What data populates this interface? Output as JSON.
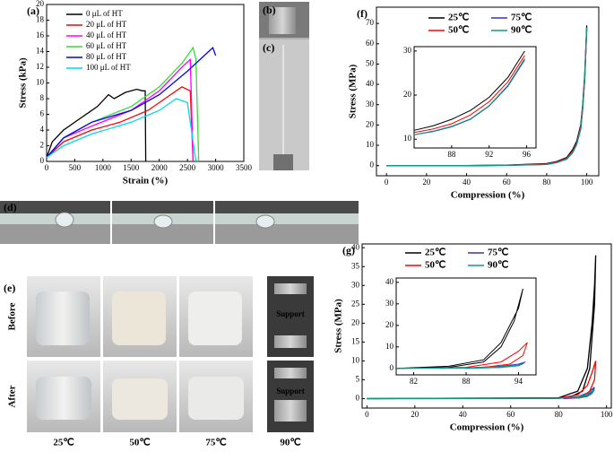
{
  "chart_data": [
    {
      "type": "line",
      "label": "(a)",
      "xlabel": "Strain (%)",
      "ylabel": "Stress (kPa)",
      "xlim": [
        0,
        3500
      ],
      "ylim": [
        0,
        20
      ],
      "xticks": [
        0,
        500,
        1000,
        1500,
        2000,
        2500,
        3000,
        3500
      ],
      "yticks": [
        0,
        2,
        4,
        6,
        8,
        10,
        12,
        14,
        16,
        18,
        20
      ],
      "series": [
        {
          "name": "0 μL of HT",
          "color": "#000000",
          "x": [
            0,
            100,
            300,
            600,
            900,
            1100,
            1200,
            1400,
            1600,
            1700,
            1750,
            1760
          ],
          "values": [
            0.5,
            2.5,
            4,
            5.5,
            7,
            8.5,
            8,
            8.8,
            9.2,
            9,
            9,
            0
          ]
        },
        {
          "name": "20 μL of HT",
          "color": "#ff0000",
          "x": [
            0,
            300,
            800,
            1300,
            1800,
            2200,
            2400,
            2550,
            2600
          ],
          "values": [
            0.5,
            2.5,
            4,
            5,
            6.5,
            8.5,
            9.5,
            9,
            0
          ]
        },
        {
          "name": "40 μL of HT",
          "color": "#ff00ff",
          "x": [
            0,
            300,
            800,
            1500,
            2000,
            2400,
            2550,
            2600
          ],
          "values": [
            0.5,
            3,
            4.5,
            6.5,
            9,
            12,
            13,
            0
          ]
        },
        {
          "name": "60 μL of HT",
          "color": "#33dd33",
          "x": [
            0,
            300,
            800,
            1500,
            2000,
            2400,
            2600,
            2650,
            2700
          ],
          "values": [
            0.5,
            3,
            5,
            7,
            9.5,
            12.5,
            14.5,
            13,
            0
          ]
        },
        {
          "name": "80 μL of HT",
          "color": "#0000ff",
          "x": [
            0,
            300,
            800,
            1500,
            2000,
            2500,
            2800,
            2950,
            3000
          ],
          "values": [
            0.5,
            3,
            5,
            6.5,
            8.5,
            11.5,
            13.5,
            14.5,
            13.5
          ]
        },
        {
          "name": "100 μL of HT",
          "color": "#00d8e8",
          "x": [
            0,
            300,
            800,
            1500,
            2000,
            2300,
            2500,
            2650
          ],
          "values": [
            0.5,
            2,
            3.5,
            5,
            6.5,
            8,
            7.5,
            0
          ]
        }
      ]
    },
    {
      "type": "line",
      "label": "(f)",
      "xlabel": "Compression (%)",
      "ylabel": "Stress (MPa)",
      "xlim": [
        -5,
        106
      ],
      "ylim": [
        -5,
        78
      ],
      "xticks": [
        0,
        20,
        40,
        60,
        80,
        100
      ],
      "yticks": [
        0,
        10,
        20,
        30,
        40,
        50,
        60,
        70
      ],
      "series": [
        {
          "name": "25℃",
          "color": "#000000",
          "x": [
            0,
            40,
            60,
            80,
            85,
            90,
            93,
            95,
            97,
            98,
            99,
            100
          ],
          "values": [
            0,
            0,
            0.2,
            1,
            2,
            4,
            8,
            12,
            20,
            30,
            45,
            69
          ]
        },
        {
          "name": "75℃",
          "color": "#3333cc",
          "x": [
            0,
            40,
            60,
            80,
            85,
            90,
            93,
            95,
            97,
            98,
            99,
            100
          ],
          "values": [
            0,
            0,
            0.1,
            0.6,
            1.5,
            3.2,
            6.5,
            10.5,
            18,
            28,
            43,
            67
          ]
        },
        {
          "name": "50℃",
          "color": "#ff0000",
          "x": [
            0,
            40,
            60,
            80,
            85,
            90,
            93,
            95,
            97,
            98,
            99,
            100
          ],
          "values": [
            0,
            0,
            0.1,
            0.8,
            1.8,
            3.6,
            7.2,
            11,
            19,
            29,
            44,
            68
          ]
        },
        {
          "name": "90℃",
          "color": "#119988",
          "x": [
            0,
            40,
            60,
            80,
            85,
            90,
            93,
            95,
            97,
            98,
            99,
            100
          ],
          "values": [
            0,
            0,
            0.1,
            0.6,
            1.5,
            3.3,
            6.6,
            10.6,
            18.2,
            28.3,
            43.5,
            68
          ]
        }
      ]
    },
    {
      "type": "line",
      "xlim": [
        84,
        97
      ],
      "ylim": [
        8,
        31
      ],
      "xticks": [
        88,
        92,
        96
      ],
      "yticks": [
        10,
        20,
        30
      ],
      "series": [
        {
          "color": "#000000",
          "x": [
            84,
            86,
            88,
            90,
            92,
            94,
            95.8
          ],
          "values": [
            12,
            13,
            14.5,
            16.5,
            19.5,
            24,
            30
          ]
        },
        {
          "color": "#3333cc",
          "x": [
            84,
            86,
            88,
            90,
            92,
            94,
            95.8
          ],
          "values": [
            11,
            11.7,
            12.8,
            14.5,
            17.5,
            22,
            28
          ]
        },
        {
          "color": "#ff0000",
          "x": [
            84,
            86,
            88,
            90,
            92,
            94,
            95.8
          ],
          "values": [
            11.5,
            12.3,
            13.5,
            15.5,
            18.5,
            23,
            29
          ]
        },
        {
          "color": "#119988",
          "x": [
            84,
            86,
            88,
            90,
            92,
            94,
            95.8
          ],
          "values": [
            11,
            11.8,
            12.9,
            14.6,
            17.6,
            22.2,
            28.3
          ]
        }
      ]
    },
    {
      "type": "line",
      "label": "(g)",
      "xlabel": "Compression (%)",
      "ylabel": "Stress (MPa)",
      "xlim": [
        -2,
        102
      ],
      "ylim": [
        -2.5,
        41
      ],
      "xticks": [
        0,
        20,
        40,
        60,
        80,
        100
      ],
      "yticks": [
        0,
        5,
        10,
        15,
        20,
        25,
        30,
        35,
        40
      ],
      "series": [
        {
          "name": "25℃",
          "color": "#000000",
          "x": [
            0,
            80,
            88,
            92,
            94,
            95,
            95.5,
            95,
            93,
            90,
            85,
            80
          ],
          "values": [
            0,
            0.2,
            2,
            8,
            20,
            30,
            38,
            25,
            8,
            2,
            0.5,
            0.2
          ]
        },
        {
          "name": "75℃",
          "color": "#3333cc",
          "x": [
            0,
            80,
            88,
            92,
            94,
            95,
            94,
            92,
            88,
            82
          ],
          "values": [
            0,
            0.1,
            0.5,
            1.5,
            2.5,
            3,
            1.8,
            0.8,
            0.2,
            0
          ]
        },
        {
          "name": "50℃",
          "color": "#ff0000",
          "x": [
            0,
            80,
            88,
            92,
            94,
            95.5,
            95,
            93,
            90,
            85
          ],
          "values": [
            0,
            0.1,
            1,
            3.5,
            7,
            10,
            5,
            2,
            0.5,
            0.1
          ]
        },
        {
          "name": "90℃",
          "color": "#119988",
          "x": [
            0,
            80,
            88,
            92,
            94,
            95,
            94,
            92,
            88
          ],
          "values": [
            0,
            0.1,
            0.4,
            1.2,
            2,
            2.4,
            1.4,
            0.6,
            0.1
          ]
        }
      ]
    },
    {
      "type": "line",
      "xlim": [
        80,
        96
      ],
      "ylim": [
        -3,
        42
      ],
      "xticks": [
        82,
        88,
        94
      ],
      "yticks": [
        0,
        10,
        20,
        30,
        40
      ],
      "series": [
        {
          "color": "#000000",
          "x": [
            80,
            86,
            90,
            92,
            93.5,
            94.5,
            94,
            92,
            90,
            86,
            80
          ],
          "values": [
            0,
            0.5,
            3,
            10,
            22,
            37,
            28,
            12,
            4,
            1,
            0
          ]
        },
        {
          "color": "#3333cc",
          "x": [
            80,
            88,
            92,
            94,
            94.8,
            94,
            92,
            88
          ],
          "values": [
            0,
            0.2,
            1,
            2,
            3,
            1.5,
            0.5,
            0
          ]
        },
        {
          "color": "#ff0000",
          "x": [
            80,
            88,
            92,
            94,
            95,
            94.5,
            93,
            90,
            85
          ],
          "values": [
            0,
            0.5,
            3,
            8,
            12,
            6,
            2,
            0.5,
            0
          ]
        },
        {
          "color": "#119988",
          "x": [
            80,
            88,
            92,
            94,
            94.6,
            94,
            92,
            88
          ],
          "values": [
            0,
            0.2,
            0.8,
            1.5,
            2.3,
            1.2,
            0.4,
            0
          ]
        }
      ]
    }
  ],
  "photos": {
    "b": "(b)",
    "c": "(c)",
    "d": "(d)",
    "e": "(e)",
    "before": "Before",
    "after": "After",
    "support": [
      "Support",
      "Support"
    ],
    "temps": [
      "25℃",
      "50℃",
      "75℃",
      "90℃"
    ]
  }
}
